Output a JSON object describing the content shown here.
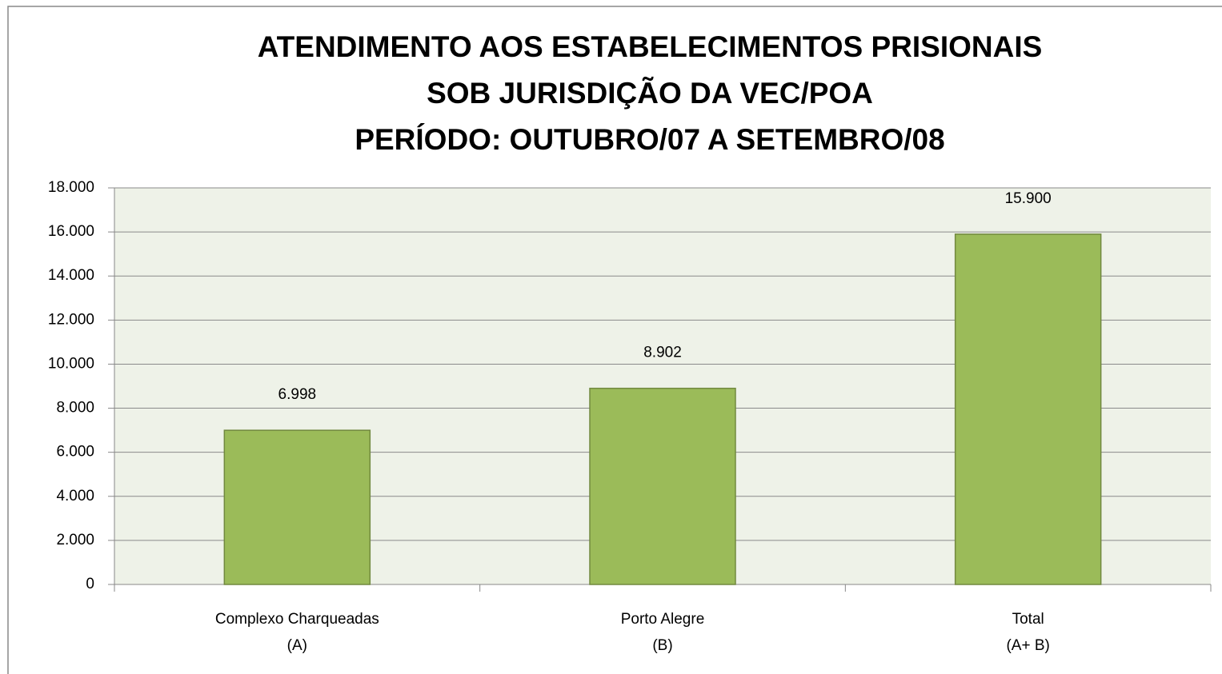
{
  "chart_data": {
    "type": "bar",
    "title": [
      "ATENDIMENTO AOS ESTABELECIMENTOS PRISIONAIS",
      "SOB JURISDIÇÃO DA VEC/POA",
      "PERÍODO: OUTUBRO/07 A SETEMBRO/08"
    ],
    "categories": [
      [
        "Complexo Charqueadas",
        "(A)"
      ],
      [
        "Porto Alegre",
        "(B)"
      ],
      [
        "Total",
        "(A+ B)"
      ]
    ],
    "values": [
      6998,
      8902,
      15900
    ],
    "value_labels": [
      "6.998",
      "8.902",
      "15.900"
    ],
    "color": "#9bbb59",
    "ylim": [
      0,
      18000
    ],
    "yticks": [
      0,
      {
        "value": 2000,
        "label": "2.000"
      },
      {
        "value": 4000,
        "label": "4.000"
      },
      {
        "value": 6000,
        "label": "6.000"
      },
      {
        "value": 8000,
        "label": "8.000"
      },
      {
        "value": 10000,
        "label": "10.000"
      },
      {
        "value": 12000,
        "label": "12.000"
      },
      {
        "value": 14000,
        "label": "14.000"
      },
      {
        "value": 16000,
        "label": "16.000"
      },
      {
        "value": 18000,
        "label": "18.000"
      }
    ],
    "grid": true
  }
}
